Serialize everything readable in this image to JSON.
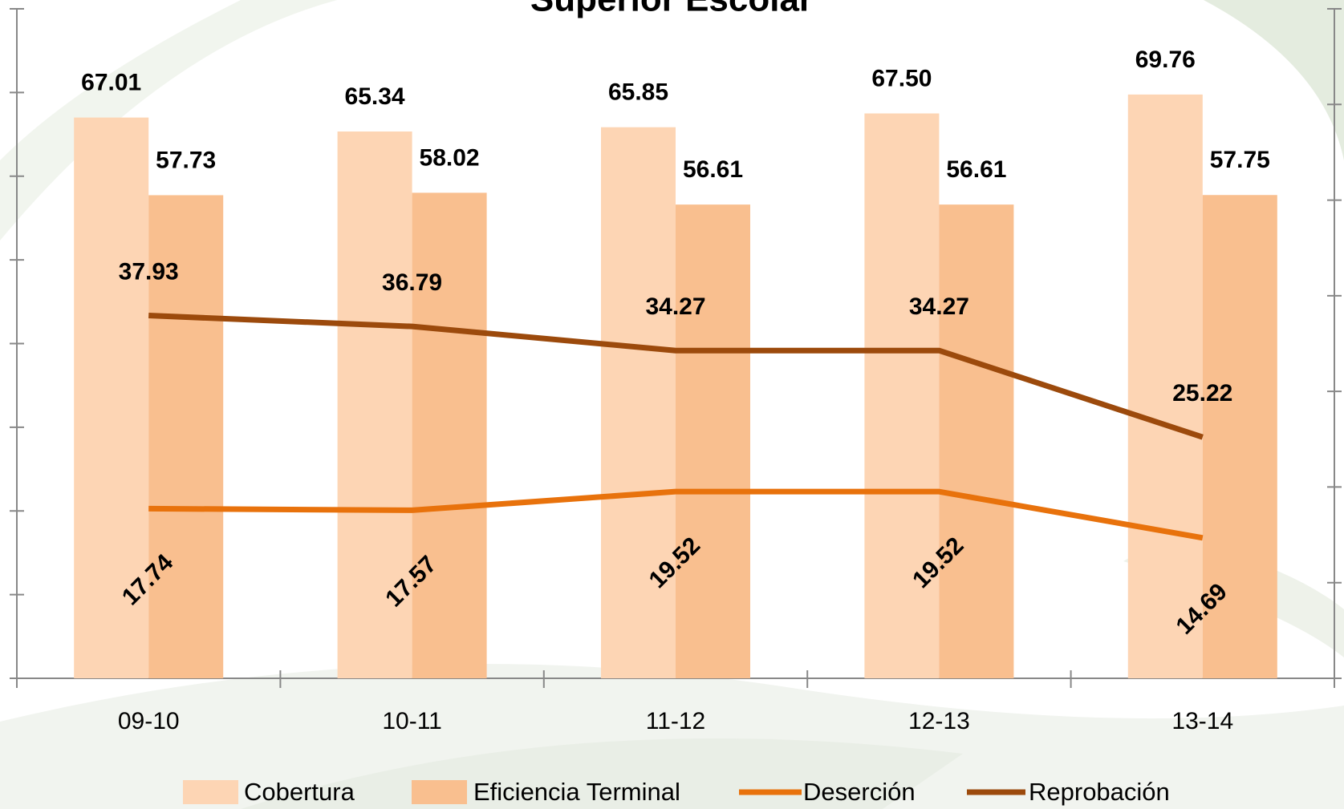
{
  "chart_data": {
    "type": "bar",
    "title": "Superior Escolar",
    "categories": [
      "09-10",
      "10-11",
      "11-12",
      "12-13",
      "13-14"
    ],
    "series": [
      {
        "name": "Cobertura",
        "type": "bar",
        "color": "#fdd5b4",
        "values": [
          67.01,
          65.34,
          65.85,
          67.5,
          69.76
        ],
        "value_labels": [
          "67.01",
          "65.34",
          "65.85",
          "67.50",
          "69.76"
        ]
      },
      {
        "name": "Eficiencia Terminal",
        "type": "bar",
        "color": "#f9bf8f",
        "values": [
          57.73,
          58.02,
          56.61,
          56.61,
          57.75
        ],
        "value_labels": [
          "57.73",
          "58.02",
          "56.61",
          "56.61",
          "57.75"
        ]
      },
      {
        "name": "Deserción",
        "type": "line",
        "axis": "y2",
        "color": "#e8720c",
        "values": [
          17.74,
          17.57,
          19.52,
          19.52,
          14.69
        ],
        "value_labels": [
          "17.74",
          "17.57",
          "19.52",
          "19.52",
          "14.69"
        ]
      },
      {
        "name": "Reprobación",
        "type": "line",
        "axis": "y2",
        "color": "#9c4a0c",
        "values": [
          37.93,
          36.79,
          34.27,
          34.27,
          25.22
        ],
        "value_labels": [
          "37.93",
          "36.79",
          "34.27",
          "34.27",
          "25.22"
        ]
      }
    ],
    "ylim": [
      0,
      80
    ],
    "yticks": [
      0,
      10,
      20,
      30,
      40,
      50,
      60,
      70,
      80
    ],
    "y2lim": [
      0,
      70
    ],
    "y2ticks": [
      0,
      10,
      20,
      30,
      40,
      50,
      60,
      70
    ]
  }
}
